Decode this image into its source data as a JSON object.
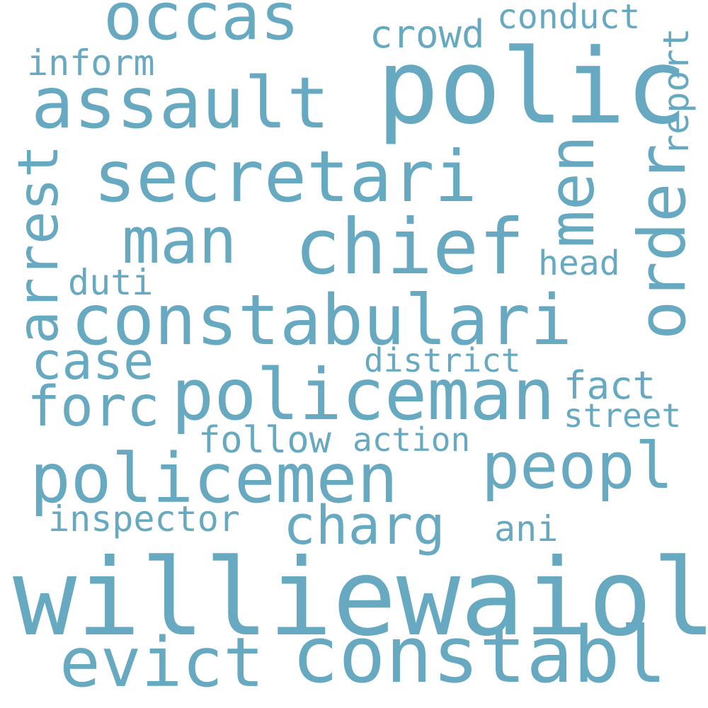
{
  "colors": {
    "background": "#ffffff",
    "word": "#67a9c0"
  },
  "words": {
    "williewaiola": "williewaiola",
    "polic": "polic",
    "constabl": "constabl",
    "policeman": "policeman",
    "constabulari": "constabulari",
    "policemen": "policemen",
    "secretari": "secretari",
    "chief": "chief",
    "assault": "assault",
    "occas": "occas",
    "man": "man",
    "men": "men",
    "order": "order",
    "arrest": "arrest",
    "evict": "evict",
    "peopl": "peopl",
    "charg": "charg",
    "forc": "forc",
    "case": "case",
    "crowd": "crowd",
    "inform": "inform",
    "conduct": "conduct",
    "report": "report",
    "inspector": "inspector",
    "head": "head",
    "duti": "duti",
    "district": "district",
    "fact": "fact",
    "street": "street",
    "follow": "follow",
    "action": "action",
    "ani": "ani"
  }
}
